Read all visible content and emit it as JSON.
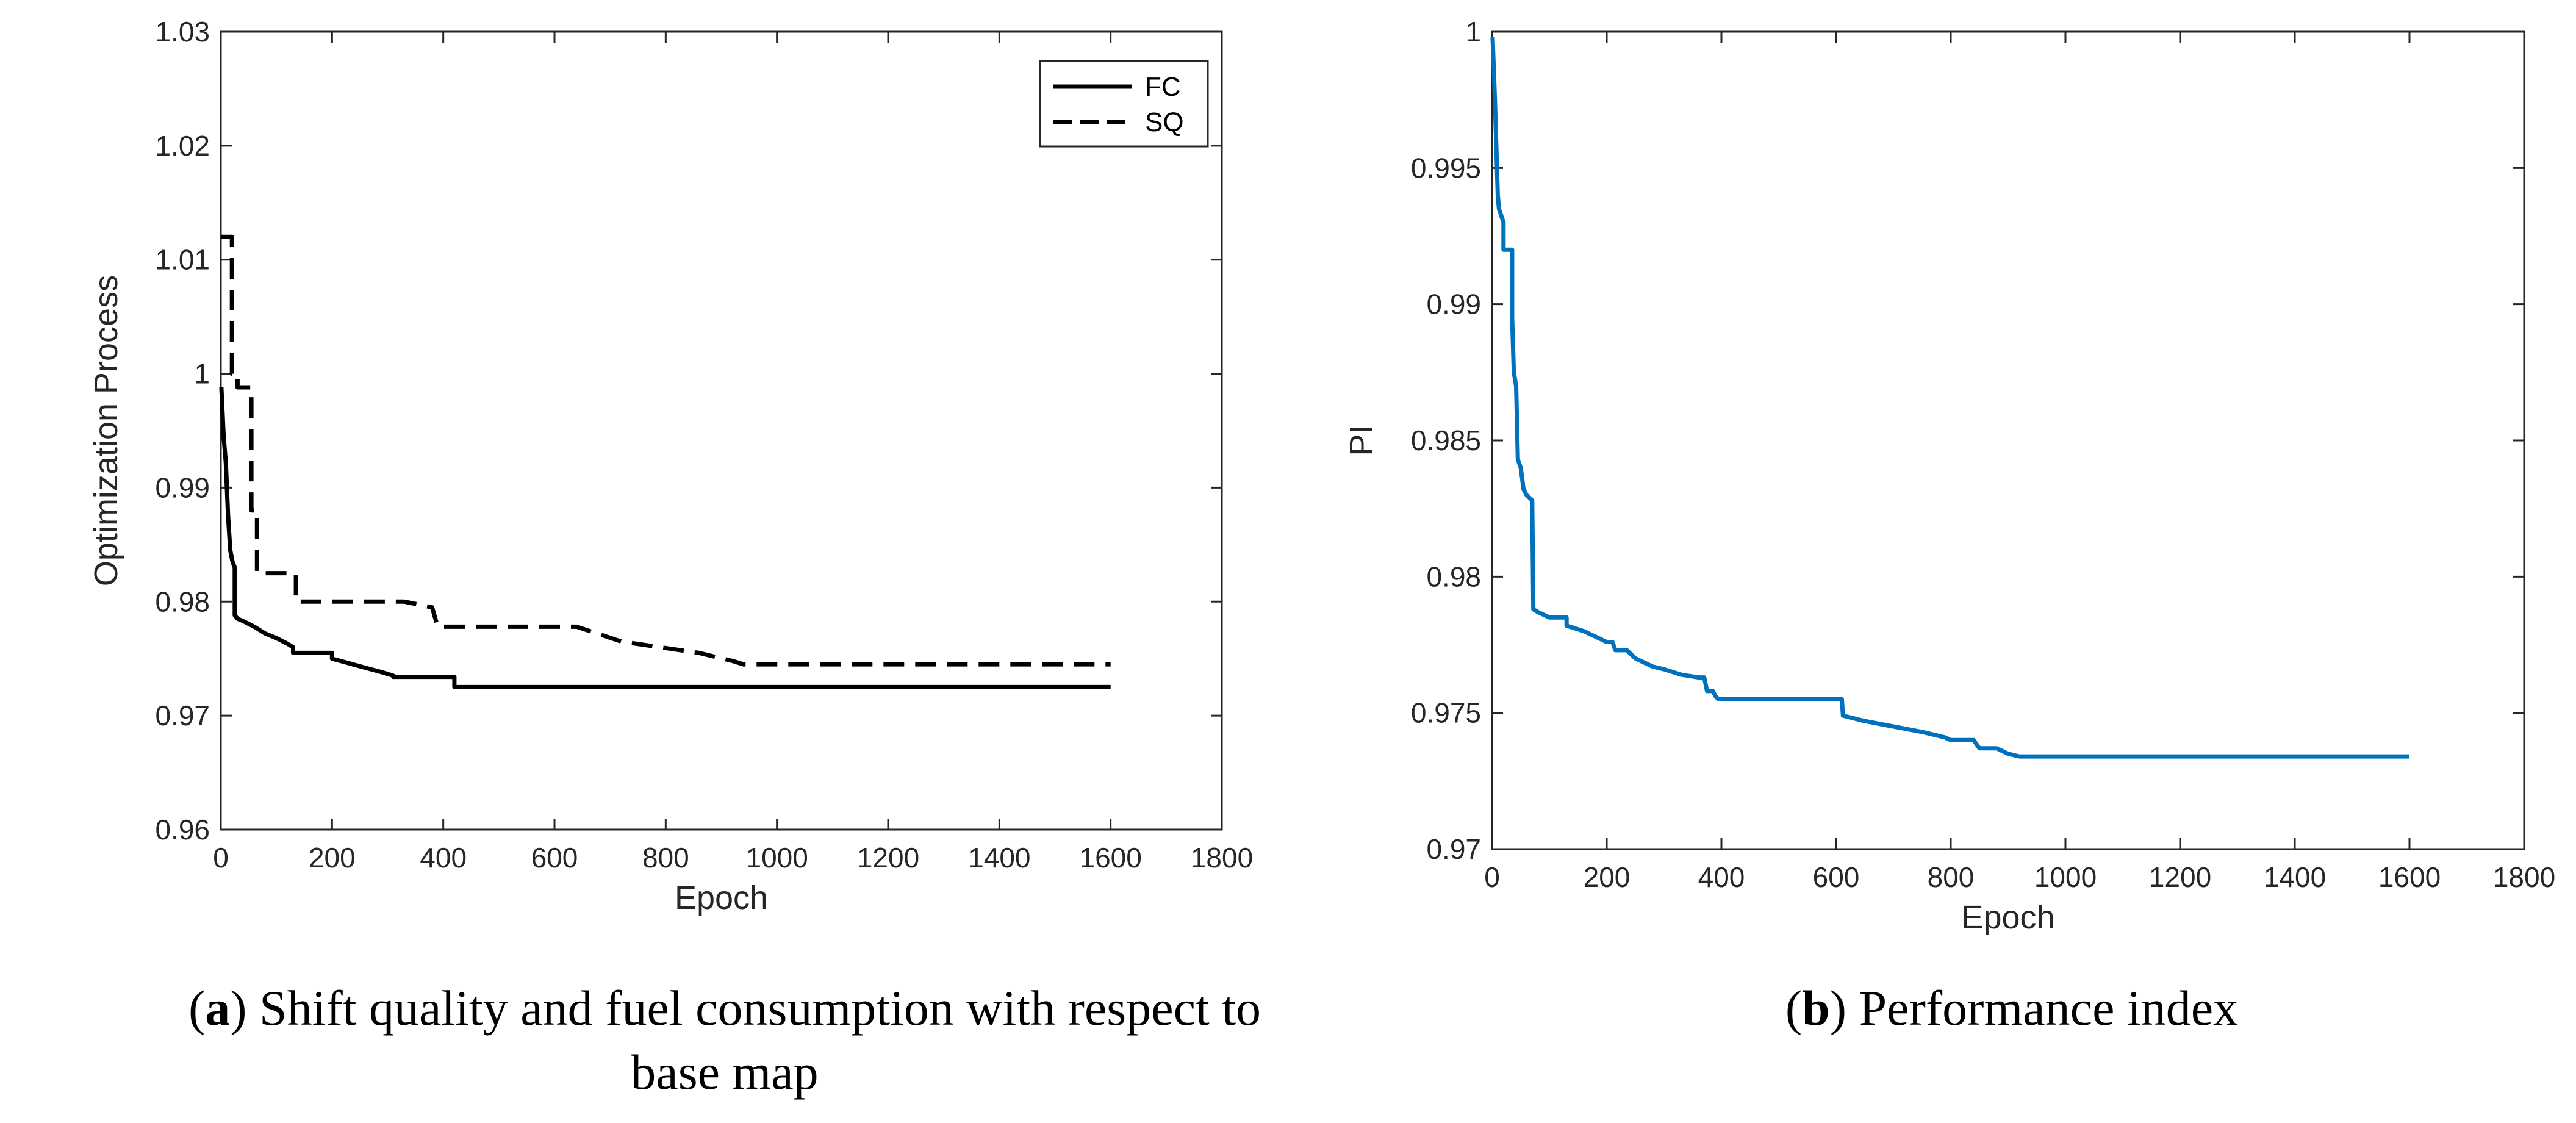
{
  "chart_data": [
    {
      "type": "line",
      "panel": "a",
      "xlabel": "Epoch",
      "ylabel": "Optimization Process",
      "xlim": [
        0,
        1800
      ],
      "ylim": [
        0.96,
        1.03
      ],
      "xticks": [
        "0",
        "200",
        "400",
        "600",
        "800",
        "1000",
        "1200",
        "1400",
        "1600",
        "1800"
      ],
      "yticks": [
        "0.96",
        "0.97",
        "0.98",
        "0.99",
        "1",
        "1.01",
        "1.02",
        "1.03"
      ],
      "legend": "top-right",
      "series": [
        {
          "name": "FC",
          "style": "solid",
          "color": "#000000",
          "x": [
            1,
            5,
            9,
            13,
            17,
            21,
            25,
            25,
            30,
            40,
            60,
            80,
            100,
            120,
            130,
            130,
            200,
            200,
            230,
            260,
            290,
            310,
            310,
            420,
            420,
            1600
          ],
          "y": [
            0.9988,
            0.9945,
            0.9922,
            0.9875,
            0.9845,
            0.9835,
            0.983,
            0.9788,
            0.9785,
            0.9783,
            0.9778,
            0.9772,
            0.9768,
            0.9763,
            0.976,
            0.9755,
            0.9755,
            0.975,
            0.9746,
            0.9742,
            0.9738,
            0.9735,
            0.9734,
            0.9734,
            0.9725,
            0.9725
          ]
        },
        {
          "name": "SQ",
          "style": "dashed",
          "color": "#000000",
          "x": [
            1,
            20,
            20,
            30,
            30,
            55,
            55,
            65,
            65,
            135,
            135,
            330,
            380,
            390,
            640,
            720,
            860,
            920,
            940,
            1600
          ],
          "y": [
            1.012,
            1.012,
            1.0,
            1.0,
            0.9988,
            0.9988,
            0.988,
            0.988,
            0.9825,
            0.9825,
            0.98,
            0.98,
            0.9795,
            0.9778,
            0.9778,
            0.9765,
            0.9755,
            0.9748,
            0.9745,
            0.9745
          ]
        }
      ]
    },
    {
      "type": "line",
      "panel": "b",
      "xlabel": "Epoch",
      "ylabel": "PI",
      "xlim": [
        0,
        1800
      ],
      "ylim": [
        0.97,
        1.0
      ],
      "xticks": [
        "0",
        "200",
        "400",
        "600",
        "800",
        "1000",
        "1200",
        "1400",
        "1600",
        "1800"
      ],
      "yticks": [
        "0.97",
        "0.975",
        "0.98",
        "0.985",
        "0.99",
        "0.995",
        "1"
      ],
      "series": [
        {
          "name": "PI",
          "style": "solid",
          "color": "#0072BD",
          "x": [
            1,
            5,
            10,
            12,
            20,
            20,
            35,
            35,
            38,
            42,
            45,
            50,
            55,
            60,
            70,
            72,
            80,
            100,
            130,
            130,
            160,
            200,
            210,
            215,
            235,
            250,
            260,
            280,
            300,
            330,
            360,
            370,
            375,
            385,
            390,
            395,
            400,
            610,
            612,
            650,
            700,
            750,
            790,
            800,
            820,
            840,
            850,
            880,
            900,
            920,
            1600
          ],
          "y": [
            0.9998,
            0.9975,
            0.994,
            0.9935,
            0.993,
            0.992,
            0.992,
            0.9895,
            0.9875,
            0.987,
            0.9843,
            0.984,
            0.9832,
            0.983,
            0.9828,
            0.9788,
            0.9787,
            0.9785,
            0.9785,
            0.9782,
            0.978,
            0.9776,
            0.9776,
            0.9773,
            0.9773,
            0.977,
            0.9769,
            0.9767,
            0.9766,
            0.9764,
            0.9763,
            0.9763,
            0.9758,
            0.9758,
            0.9756,
            0.9755,
            0.9755,
            0.9755,
            0.9749,
            0.9747,
            0.9745,
            0.9743,
            0.9741,
            0.974,
            0.974,
            0.974,
            0.9737,
            0.9737,
            0.9735,
            0.9734,
            0.9734
          ]
        }
      ]
    }
  ],
  "captions": {
    "a": {
      "prefix_open": "(",
      "letter": "a",
      "line1": ") Shift quality and fuel consumption with respect to",
      "line2": "base map"
    },
    "b": {
      "prefix_open": "(",
      "letter": "b",
      "line1": ") Performance index"
    }
  }
}
